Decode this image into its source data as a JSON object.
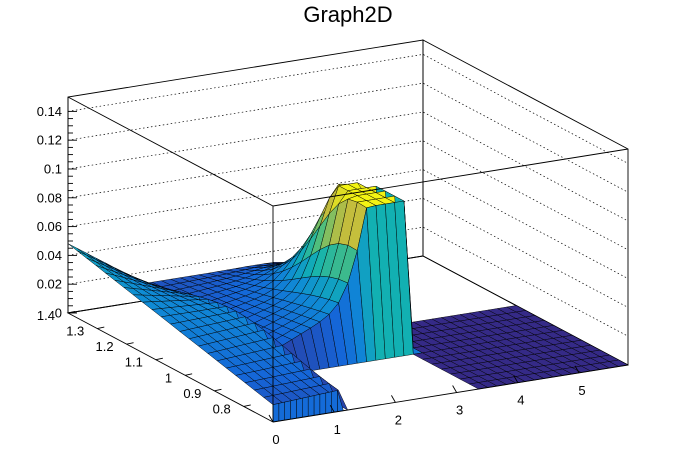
{
  "chart_data": {
    "type": "surface",
    "title": "Graph2D",
    "xlabel": "",
    "ylabel": "",
    "zlabel": "",
    "xlim": [
      0,
      5.8
    ],
    "ylim": [
      0.7,
      1.4
    ],
    "zlim": [
      0,
      0.15
    ],
    "x_ticks": [
      "0",
      "1",
      "2",
      "3",
      "4",
      "5"
    ],
    "y_ticks": [
      "0.8",
      "0.9",
      "1",
      "1.1",
      "1.2",
      "1.3",
      "1.4"
    ],
    "z_ticks": [
      "0",
      "0.02",
      "0.04",
      "0.06",
      "0.08",
      "0.1",
      "0.12",
      "0.14"
    ],
    "grid": true,
    "colormap": [
      "#352a87",
      "#1565d8",
      "#0f8cd5",
      "#12b2b0",
      "#59c076",
      "#c2bc3e",
      "#f9fb0e"
    ],
    "peak": {
      "x": 3.1,
      "y": 1.0,
      "z": 0.1
    },
    "surface_regions": [
      {
        "x_range": [
          0,
          1.15
        ],
        "y_range": [
          0.7,
          1.4
        ],
        "z_max": 0.05
      },
      {
        "x_range": [
          1.15,
          3.4
        ],
        "y_range": [
          0.95,
          1.4
        ],
        "z_max": 0.1
      },
      {
        "x_range": [
          3.4,
          5.8
        ],
        "y_range": [
          0.7,
          1.05
        ],
        "z_max": 0.0
      }
    ]
  }
}
